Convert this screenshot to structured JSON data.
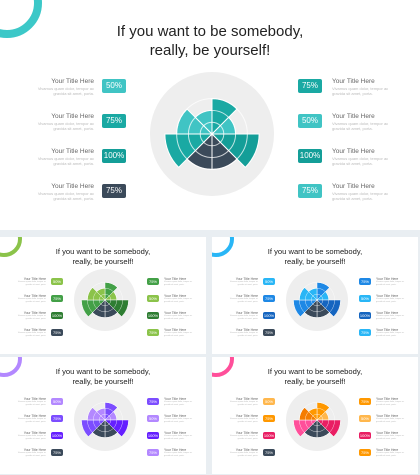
{
  "title_line1": "If you want to be somebody,",
  "title_line2": "really, be yourself!",
  "left_items": [
    {
      "title": "Your Title Here",
      "desc1": "Vivamus quam dolor, tempor ac",
      "desc2": "gravida sit amet, porta.",
      "percent": "50%"
    },
    {
      "title": "Your Title Here",
      "desc1": "Vivamus quam dolor, tempor ac",
      "desc2": "gravida sit amet, porta.",
      "percent": "75%"
    },
    {
      "title": "Your Title Here",
      "desc1": "Vivamus quam dolor, tempor ac",
      "desc2": "gravida sit amet, porta.",
      "percent": "100%"
    },
    {
      "title": "Your Title Here",
      "desc1": "Vivamus quam dolor, tempor ac",
      "desc2": "gravida sit amet, porta.",
      "percent": "75%"
    }
  ],
  "right_items": [
    {
      "title": "Your Title Here",
      "desc1": "Vivamus quam dolor, tempor ac",
      "desc2": "gravida sit amet, porta.",
      "percent": "75%"
    },
    {
      "title": "Your Title Here",
      "desc1": "Vivamus quam dolor, tempor ac",
      "desc2": "gravida sit amet, porta.",
      "percent": "50%"
    },
    {
      "title": "Your Title Here",
      "desc1": "Vivamus quam dolor, tempor ac",
      "desc2": "gravida sit amet, porta.",
      "percent": "100%"
    },
    {
      "title": "Your Title Here",
      "desc1": "Vivamus quam dolor, tempor ac",
      "desc2": "gravida sit amet, porta.",
      "percent": "75%"
    }
  ],
  "segment_levels": [
    0.75,
    0.5,
    1.0,
    0.75,
    0.75,
    1.0,
    0.75,
    0.5
  ],
  "themes": [
    {
      "ring": "#3cc8c8",
      "colors": [
        "#1aa9a3",
        "#40c4c4",
        "#149e98",
        "#3b4a5a",
        "#3b4a5a",
        "#1aa9a3",
        "#40c4c4",
        "#40c4c4"
      ],
      "badges_left": [
        "#40c4c4",
        "#1aa9a3",
        "#149e98",
        "#3b4a5a"
      ],
      "badges_right": [
        "#1aa9a3",
        "#40c4c4",
        "#149e98",
        "#40c4c4"
      ]
    },
    {
      "ring": "#8bc34a",
      "colors": [
        "#43a047",
        "#8bc34a",
        "#2e7d32",
        "#3b4a5a",
        "#3b4a5a",
        "#43a047",
        "#8bc34a",
        "#8bc34a"
      ],
      "badges_left": [
        "#8bc34a",
        "#43a047",
        "#2e7d32",
        "#3b4a5a"
      ],
      "badges_right": [
        "#43a047",
        "#8bc34a",
        "#2e7d32",
        "#8bc34a"
      ]
    },
    {
      "ring": "#29b6f6",
      "colors": [
        "#1e88e5",
        "#29b6f6",
        "#1565c0",
        "#3b4a5a",
        "#3b4a5a",
        "#1e88e5",
        "#29b6f6",
        "#29b6f6"
      ],
      "badges_left": [
        "#29b6f6",
        "#1e88e5",
        "#1565c0",
        "#3b4a5a"
      ],
      "badges_right": [
        "#1e88e5",
        "#29b6f6",
        "#1565c0",
        "#29b6f6"
      ]
    },
    {
      "ring": "#b388ff",
      "colors": [
        "#7c4dff",
        "#b388ff",
        "#651fff",
        "#3b4a5a",
        "#3b4a5a",
        "#7c4dff",
        "#b388ff",
        "#b388ff"
      ],
      "badges_left": [
        "#b388ff",
        "#7c4dff",
        "#651fff",
        "#3b4a5a"
      ],
      "badges_right": [
        "#7c4dff",
        "#b388ff",
        "#651fff",
        "#b388ff"
      ]
    },
    {
      "ring": "#ff4f9a",
      "colors": [
        "#ff9800",
        "#ffb74d",
        "#e91e63",
        "#3b4a5a",
        "#3b4a5a",
        "#ff4f9a",
        "#f57c00",
        "#ff9800"
      ],
      "badges_left": [
        "#ffb74d",
        "#ff9800",
        "#e91e63",
        "#3b4a5a"
      ],
      "badges_right": [
        "#ff9800",
        "#ffb74d",
        "#e91e63",
        "#ff9800"
      ]
    }
  ],
  "chart_bg": "#eeeeee"
}
